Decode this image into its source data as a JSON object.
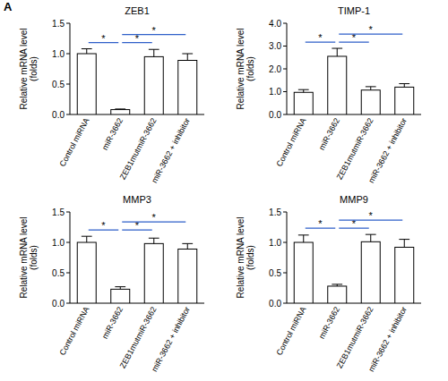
{
  "panel_label": "A",
  "chart_data": [
    {
      "type": "bar",
      "title": "ZEB1",
      "ylabel": [
        "Relative mRNA level",
        "(folds)"
      ],
      "categories": [
        "Control miRNA",
        "miR-3662",
        "ZEB1mutmiR-3662",
        "miR-3662 + inhibitor"
      ],
      "values": [
        1.0,
        0.08,
        0.95,
        0.89
      ],
      "errors": [
        0.08,
        0.01,
        0.12,
        0.11
      ],
      "color": "#ffffff",
      "ylim": [
        0,
        1.5
      ],
      "yticks": [
        {
          "value": 0,
          "label": "0.0"
        },
        0.5,
        {
          "value": 1,
          "label": "1.0"
        },
        1.5
      ],
      "comparisons": [
        {
          "pair": [
            "Control miRNA",
            "miR-3662"
          ],
          "label": "*"
        },
        {
          "pair": [
            "miR-3662",
            "ZEB1mutmiR-3662"
          ],
          "label": "*"
        },
        {
          "pair": [
            "miR-3662",
            "miR-3662 + inhibitor"
          ],
          "label": "*"
        }
      ]
    },
    {
      "type": "bar",
      "title": "TIMP-1",
      "ylabel": [
        "Relative mRNA level",
        "(folds)"
      ],
      "categories": [
        "Control miRNA",
        "miR-3662",
        "ZEB1mutmiR-3662",
        "miR-3662 + inhibitor"
      ],
      "values": [
        0.97,
        2.55,
        1.07,
        1.2
      ],
      "errors": [
        0.12,
        0.35,
        0.15,
        0.15
      ],
      "color": "#ffffff",
      "ylim": [
        0,
        4
      ],
      "yticks": [
        {
          "value": 0,
          "label": "0.0"
        },
        {
          "value": 1,
          "label": "1.0"
        },
        {
          "value": 2,
          "label": "2.0"
        },
        {
          "value": 3,
          "label": "3.0"
        },
        {
          "value": 4,
          "label": "4.0"
        }
      ],
      "comparisons": [
        {
          "pair": [
            "Control miRNA",
            "miR-3662"
          ],
          "label": "*"
        },
        {
          "pair": [
            "miR-3662",
            "ZEB1mutmiR-3662"
          ],
          "label": "*"
        },
        {
          "pair": [
            "miR-3662",
            "miR-3662 + inhibitor"
          ],
          "label": "*"
        }
      ]
    },
    {
      "type": "bar",
      "title": "MMP3",
      "ylabel": [
        "Relative mRNA level",
        "(folds)"
      ],
      "categories": [
        "Control miRNA",
        "miR-3662",
        "ZEB1mutmiR-3662",
        "miR-3662 + inhibitor"
      ],
      "values": [
        1.0,
        0.23,
        0.98,
        0.89
      ],
      "errors": [
        0.1,
        0.04,
        0.09,
        0.09
      ],
      "color": "#ffffff",
      "ylim": [
        0,
        1.5
      ],
      "yticks": [
        {
          "value": 0,
          "label": "0.0"
        },
        0.5,
        {
          "value": 1,
          "label": "1.0"
        },
        1.5
      ],
      "comparisons": [
        {
          "pair": [
            "Control miRNA",
            "miR-3662"
          ],
          "label": "*"
        },
        {
          "pair": [
            "miR-3662",
            "ZEB1mutmiR-3662"
          ],
          "label": "*"
        },
        {
          "pair": [
            "miR-3662",
            "miR-3662 + inhibitor"
          ],
          "label": "*"
        }
      ]
    },
    {
      "type": "bar",
      "title": "MMP9",
      "ylabel": [
        "Relative mRNA level",
        "(folds)"
      ],
      "categories": [
        "Control miRNA",
        "miR-3662",
        "ZEB1mutmiR-3662",
        "miR-3662 + inhibitor"
      ],
      "values": [
        1.0,
        0.28,
        1.01,
        0.92
      ],
      "errors": [
        0.12,
        0.03,
        0.12,
        0.13
      ],
      "color": "#ffffff",
      "ylim": [
        0,
        1.5
      ],
      "yticks": [
        {
          "value": 0,
          "label": "0.0"
        },
        0.5,
        {
          "value": 1,
          "label": "1.0"
        },
        1.5
      ],
      "comparisons": [
        {
          "pair": [
            "Control miRNA",
            "miR-3662"
          ],
          "label": "*"
        },
        {
          "pair": [
            "miR-3662",
            "ZEB1mutmiR-3662"
          ],
          "label": "*"
        },
        {
          "pair": [
            "miR-3662",
            "miR-3662 + inhibitor"
          ],
          "label": "*"
        }
      ]
    }
  ]
}
